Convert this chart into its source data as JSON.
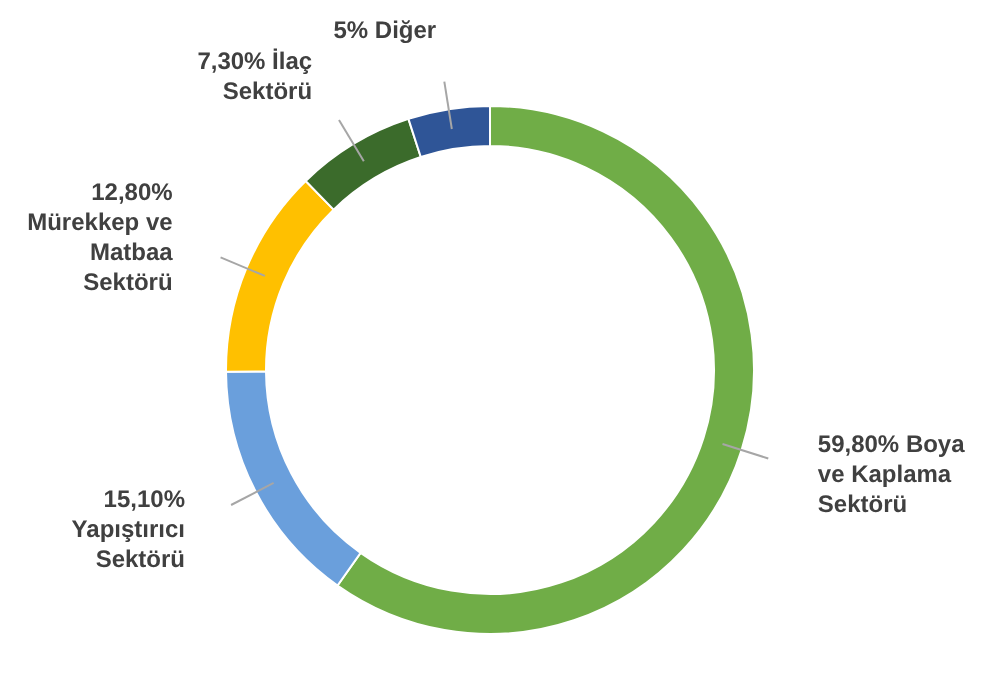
{
  "chart_data": {
    "type": "donut",
    "categories": [
      "Boya ve Kaplama Sektörü",
      "Yapıştırıcı Sektörü",
      "Mürekkep ve Matbaa Sektörü",
      "İlaç Sektörü",
      "Diğer"
    ],
    "values": [
      59.8,
      15.1,
      12.8,
      7.3,
      5
    ],
    "value_labels": [
      "59,80%",
      "15,10%",
      "12,80%",
      "7,30%",
      "5%"
    ],
    "colors": [
      "#70ad47",
      "#6a9fdc",
      "#ffc000",
      "#3b6b2b",
      "#2f5597"
    ]
  }
}
